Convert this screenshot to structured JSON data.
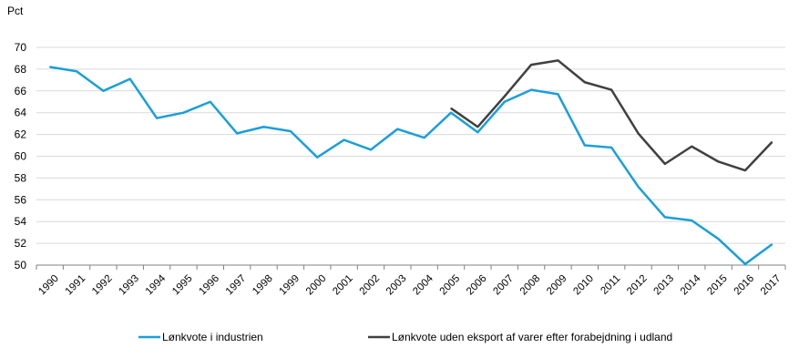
{
  "chart_data": {
    "type": "line",
    "title": "",
    "xlabel": "",
    "ylabel": "Pct",
    "ylim": [
      50,
      70
    ],
    "yticks": [
      50,
      52,
      54,
      56,
      58,
      60,
      62,
      64,
      66,
      68,
      70
    ],
    "grid": "horizontal",
    "legend_position": "bottom",
    "x": [
      "1990",
      "1991",
      "1992",
      "1993",
      "1994",
      "1995",
      "1996",
      "1997",
      "1998",
      "1999",
      "2000",
      "2001",
      "2002",
      "2003",
      "2004",
      "2005",
      "2006",
      "2007",
      "2008",
      "2009",
      "2010",
      "2011",
      "2012",
      "2013",
      "2014",
      "2015",
      "2016",
      "2017"
    ],
    "series": [
      {
        "name": "Lønkvote i industrien",
        "color": "#1a9fd9",
        "values": [
          68.2,
          67.8,
          66.0,
          67.1,
          63.5,
          64.0,
          65.0,
          62.1,
          62.7,
          62.3,
          59.9,
          61.5,
          60.6,
          62.5,
          61.7,
          64.0,
          62.2,
          65.0,
          66.1,
          65.7,
          61.0,
          60.8,
          57.2,
          54.4,
          54.1,
          52.4,
          50.1,
          51.9
        ]
      },
      {
        "name": "Lønkvote uden eksport af varer efter forabejdning i udland",
        "color": "#404040",
        "values": [
          null,
          null,
          null,
          null,
          null,
          null,
          null,
          null,
          null,
          null,
          null,
          null,
          null,
          null,
          null,
          64.4,
          62.7,
          65.5,
          68.4,
          68.8,
          66.8,
          66.1,
          62.1,
          59.3,
          60.9,
          59.5,
          58.7,
          61.3
        ]
      }
    ]
  }
}
